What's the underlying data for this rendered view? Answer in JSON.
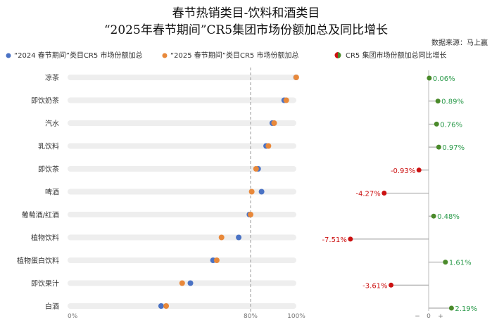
{
  "header": {
    "title_line1": "春节热销类目-饮料和酒类目",
    "title_line2": "“2025年春节期间”CR5集团市场份额加总及同比增长",
    "source": "数据来源：马上赢"
  },
  "colors": {
    "series_2024": "#4a72c4",
    "series_2025": "#e8883a",
    "positive": "#4a8a2a",
    "negative": "#cc1111",
    "track": "#eeeeee"
  },
  "chart_data": [
    {
      "type": "dot",
      "categories": [
        "凉茶",
        "即饮奶茶",
        "汽水",
        "乳饮料",
        "即饮茶",
        "啤酒",
        "葡萄酒/红酒",
        "植物饮料",
        "植物蛋白饮料",
        "即饮果汁",
        "白酒"
      ],
      "series": [
        {
          "name": "“2024 春节期间”类目CR5 市场份额加总",
          "values": [
            99.9,
            94.7,
            89.5,
            86.8,
            83.3,
            84.8,
            79.5,
            74.8,
            63.6,
            53.7,
            40.9
          ]
        },
        {
          "name": "“2025 春节期间”类目CR5 市场份额加总",
          "values": [
            99.96,
            95.6,
            90.3,
            87.8,
            82.4,
            80.5,
            80.0,
            67.3,
            65.2,
            50.1,
            43.1
          ]
        }
      ],
      "xlim": [
        0,
        100
      ],
      "x_ticks": [
        "0%",
        "80%",
        "100%"
      ],
      "reference_line": 80
    },
    {
      "type": "lollipop",
      "title": "CR5 集团市场份额加总同比增长",
      "categories": [
        "凉茶",
        "即饮奶茶",
        "汽水",
        "乳饮料",
        "即饮茶",
        "啤酒",
        "葡萄酒/红酒",
        "植物饮料",
        "植物蛋白饮料",
        "即饮果汁",
        "白酒"
      ],
      "values": [
        0.06,
        0.89,
        0.76,
        0.97,
        -0.93,
        -4.27,
        0.48,
        -7.51,
        1.61,
        -3.61,
        2.19
      ],
      "labels": [
        "0.06%",
        "0.89%",
        "0.76%",
        "0.97%",
        "-0.93%",
        "-4.27%",
        "0.48%",
        "-7.51%",
        "1.61%",
        "-3.61%",
        "2.19%"
      ],
      "axis_labels": {
        "negative": "−",
        "zero": "0",
        "positive": "+"
      }
    }
  ]
}
